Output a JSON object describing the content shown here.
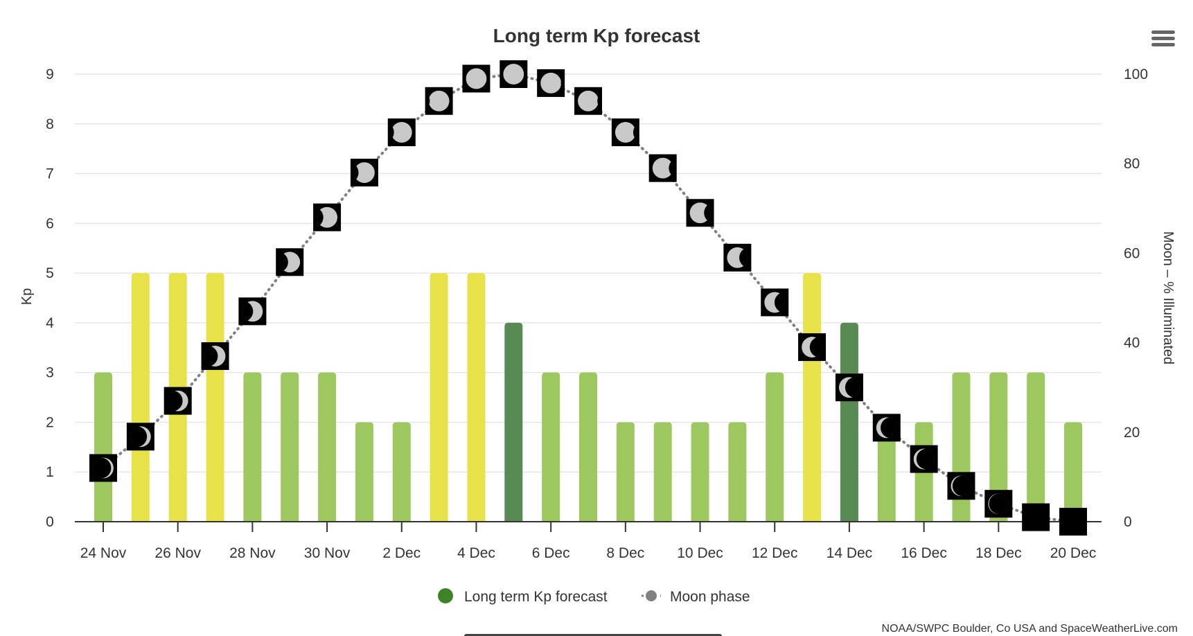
{
  "chart_data": {
    "type": "bar",
    "title": "Long term Kp forecast",
    "ylabel": "Kp",
    "y2label": "Moon – % Illuminated",
    "ylim": [
      0,
      9
    ],
    "y2lim": [
      0,
      100
    ],
    "yticks": [
      "0",
      "1",
      "2",
      "3",
      "4",
      "5",
      "6",
      "7",
      "8",
      "9"
    ],
    "y2ticks": [
      "0",
      "20",
      "40",
      "60",
      "80",
      "100"
    ],
    "grid": true,
    "legend_position": "bottom",
    "categories": [
      "24 Nov",
      "25 Nov",
      "26 Nov",
      "27 Nov",
      "28 Nov",
      "29 Nov",
      "30 Nov",
      "1 Dec",
      "2 Dec",
      "3 Dec",
      "4 Dec",
      "5 Dec",
      "6 Dec",
      "7 Dec",
      "8 Dec",
      "9 Dec",
      "10 Dec",
      "11 Dec",
      "12 Dec",
      "13 Dec",
      "14 Dec",
      "15 Dec",
      "16 Dec",
      "17 Dec",
      "18 Dec",
      "19 Dec",
      "20 Dec"
    ],
    "xtick_labels": [
      "24 Nov",
      "26 Nov",
      "28 Nov",
      "30 Nov",
      "2 Dec",
      "4 Dec",
      "6 Dec",
      "8 Dec",
      "10 Dec",
      "12 Dec",
      "14 Dec",
      "16 Dec",
      "18 Dec",
      "20 Dec"
    ],
    "series": [
      {
        "name": "Long term Kp forecast",
        "type": "bar",
        "axis": "left",
        "values": [
          3,
          5,
          5,
          5,
          3,
          3,
          3,
          2,
          2,
          5,
          5,
          4,
          3,
          3,
          2,
          2,
          2,
          2,
          3,
          5,
          4,
          2,
          2,
          3,
          3,
          3,
          2
        ]
      },
      {
        "name": "Moon phase",
        "type": "line",
        "axis": "right",
        "values": [
          12,
          19,
          27,
          37,
          47,
          58,
          68,
          78,
          87,
          94,
          99,
          100,
          98,
          94,
          87,
          79,
          69,
          59,
          49,
          39,
          30,
          21,
          14,
          8,
          4,
          1,
          0
        ]
      }
    ],
    "colors": {
      "kp_low": "#9dc75f",
      "kp_active": "#e8e24a",
      "kp_mid": "#5a8a53",
      "legend_kp": "#3d8426",
      "moon_line": "#808080"
    }
  },
  "credits": "NOAA/SWPC Boulder, Co USA and SpaceWeatherLive.com",
  "menu_icon": "hamburger-menu-icon"
}
